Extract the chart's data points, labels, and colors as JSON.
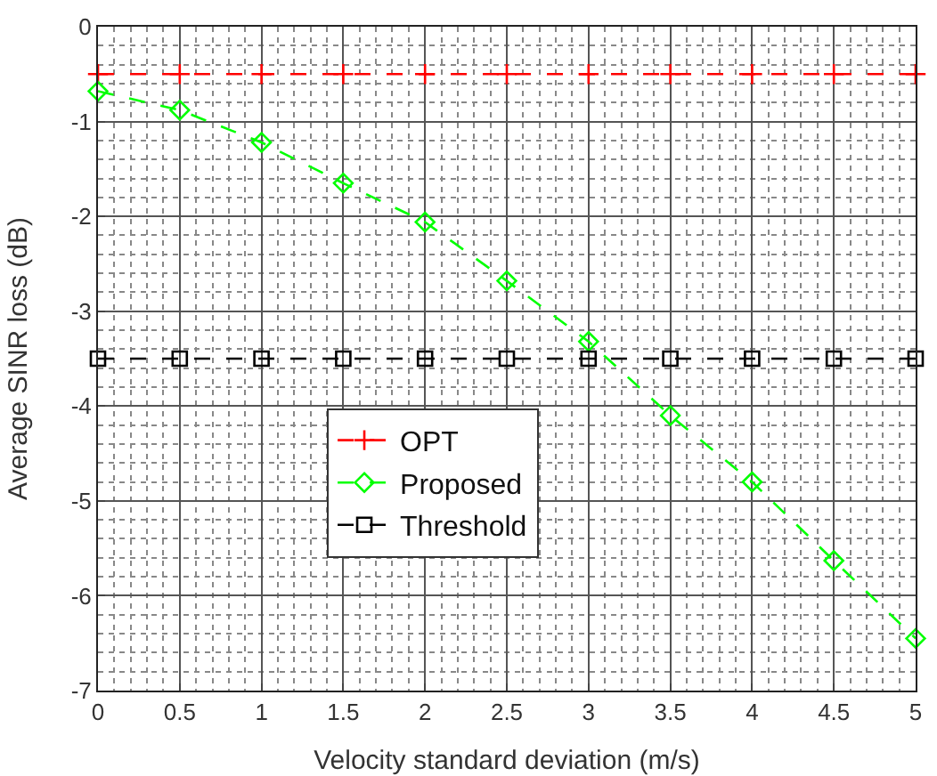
{
  "chart_data": {
    "type": "line",
    "xlabel": "Velocity standard deviation (m/s)",
    "ylabel": "Average SINR loss (dB)",
    "x": [
      0,
      0.5,
      1,
      1.5,
      2,
      2.5,
      3,
      3.5,
      4,
      4.5,
      5
    ],
    "series": [
      {
        "name": "OPT",
        "color": "#ff0000",
        "marker": "cross",
        "line_style": "dashed",
        "values": [
          -0.5,
          -0.5,
          -0.5,
          -0.5,
          -0.5,
          -0.5,
          -0.5,
          -0.5,
          -0.5,
          -0.5,
          -0.5
        ]
      },
      {
        "name": "Proposed",
        "color": "#00ff00",
        "marker": "diamond",
        "line_style": "dashed",
        "values": [
          -0.68,
          -0.88,
          -1.22,
          -1.65,
          -2.06,
          -2.68,
          -3.32,
          -4.1,
          -4.8,
          -5.63,
          -6.45
        ]
      },
      {
        "name": "Threshold",
        "color": "#000000",
        "marker": "square",
        "line_style": "dashed",
        "values": [
          -3.5,
          -3.5,
          -3.5,
          -3.5,
          -3.5,
          -3.5,
          -3.5,
          -3.5,
          -3.5,
          -3.5,
          -3.5
        ]
      }
    ],
    "xlim": [
      0,
      5
    ],
    "xticks": [
      0,
      0.5,
      1,
      1.5,
      2,
      2.5,
      3,
      3.5,
      4,
      4.5,
      5
    ],
    "ylim": [
      -7,
      0
    ],
    "yticks": [
      -7,
      -6,
      -5,
      -4,
      -3,
      -2,
      -1,
      0
    ],
    "grid": true,
    "legend": "bottom left"
  }
}
